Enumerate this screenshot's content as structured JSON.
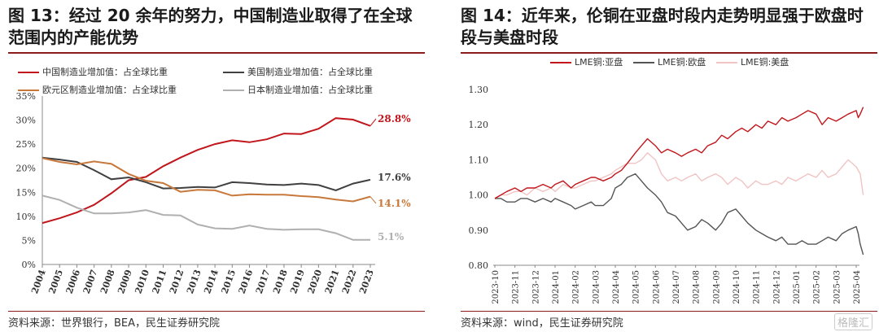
{
  "left": {
    "title": "图 13：经过 20 余年的努力，中国制造业取得了在全球范围内的产能优势",
    "title_line1": "图 13：经过 20 余年的努力，中国制造业取得了在全球",
    "title_line2": "范围内的产能优势",
    "source": "资料来源：世界银行，BEA，民生证券研究院",
    "chart_data": {
      "type": "line",
      "categories": [
        "2004",
        "2005",
        "2006",
        "2007",
        "2008",
        "2009",
        "2010",
        "2011",
        "2012",
        "2013",
        "2014",
        "2015",
        "2016",
        "2017",
        "2018",
        "2019",
        "2020",
        "2021",
        "2022",
        "2023"
      ],
      "ylim": [
        0,
        35
      ],
      "yticks": [
        "0%",
        "5%",
        "10%",
        "15%",
        "20%",
        "25%",
        "30%",
        "35%"
      ],
      "series": [
        {
          "name": "中国制造业增加值：占全球比重",
          "color": "#c0161c",
          "values": [
            8.6,
            9.6,
            10.8,
            12.4,
            14.8,
            17.5,
            18.2,
            20.4,
            22.2,
            23.8,
            25.0,
            25.8,
            25.4,
            26.0,
            27.2,
            27.1,
            28.2,
            30.4,
            30.1,
            28.8
          ],
          "end_label": "28.8%"
        },
        {
          "name": "美国制造业增加值：占全球比重",
          "color": "#404040",
          "values": [
            22.2,
            21.8,
            21.3,
            19.6,
            17.7,
            18.1,
            17.1,
            15.8,
            15.9,
            16.1,
            16.0,
            17.1,
            16.9,
            16.6,
            16.5,
            16.8,
            16.5,
            15.4,
            16.8,
            17.6
          ],
          "end_label": "17.6%"
        },
        {
          "name": "欧元区制造业增加值：占全球比重",
          "color": "#c8783a",
          "values": [
            22.1,
            21.3,
            20.8,
            21.4,
            20.9,
            18.8,
            17.4,
            16.9,
            15.1,
            15.5,
            15.4,
            14.3,
            14.6,
            14.5,
            14.5,
            14.2,
            14.0,
            13.5,
            13.1,
            14.1
          ],
          "end_label": "14.1%"
        },
        {
          "name": "日本制造业增加值：占全球比重",
          "color": "#b0b0b0",
          "values": [
            14.3,
            13.4,
            11.8,
            10.6,
            10.6,
            10.8,
            11.3,
            10.3,
            10.2,
            8.3,
            7.5,
            7.4,
            8.1,
            7.4,
            7.2,
            7.3,
            7.3,
            6.5,
            5.1,
            5.1
          ],
          "end_label": "5.1%"
        }
      ]
    }
  },
  "right": {
    "title": "图 14：近年来，伦铜在亚盘时段内走势明显强于欧盘时段与美盘时段",
    "title_line1": "图 14：近年来，伦铜在亚盘时段内走势明显强于欧盘时",
    "title_line2": "段与美盘时段",
    "source": "资料来源：wind，民生证券研究院",
    "watermark": "格隆汇",
    "chart_data": {
      "type": "line",
      "categories": [
        "2023-10",
        "2023-11",
        "2023-12",
        "2024-01",
        "2024-02",
        "2024-03",
        "2024-04",
        "2024-05",
        "2024-06",
        "2024-07",
        "2024-08",
        "2024-09",
        "2024-10",
        "2024-11",
        "2024-12",
        "2025-01",
        "2025-02",
        "2025-03",
        "2025-04"
      ],
      "ylim": [
        0.8,
        1.3
      ],
      "yticks": [
        "0.80",
        "0.90",
        "1.00",
        "1.10",
        "1.20",
        "1.30"
      ],
      "series": [
        {
          "name": "LME铜:亚盘",
          "color": "#c0161c",
          "x": [
            0,
            0.3,
            0.6,
            1,
            1.3,
            1.6,
            2,
            2.4,
            2.8,
            3,
            3.4,
            3.8,
            4,
            4.4,
            4.8,
            5,
            5.4,
            5.8,
            6,
            6.3,
            6.6,
            7,
            7.3,
            7.6,
            8,
            8.3,
            8.6,
            9,
            9.3,
            9.6,
            10,
            10.3,
            10.6,
            11,
            11.3,
            11.6,
            12,
            12.3,
            12.6,
            13,
            13.3,
            13.6,
            14,
            14.3,
            14.6,
            15,
            15.3,
            15.6,
            16,
            16.3,
            16.6,
            17,
            17.3,
            17.6,
            18,
            18.1,
            18.2,
            18.35
          ],
          "values": [
            0.99,
            1.0,
            1.01,
            1.02,
            1.01,
            1.02,
            1.02,
            1.03,
            1.02,
            1.03,
            1.04,
            1.02,
            1.03,
            1.04,
            1.05,
            1.05,
            1.04,
            1.05,
            1.06,
            1.07,
            1.09,
            1.12,
            1.14,
            1.16,
            1.14,
            1.12,
            1.13,
            1.12,
            1.11,
            1.12,
            1.13,
            1.12,
            1.14,
            1.15,
            1.17,
            1.16,
            1.18,
            1.19,
            1.18,
            1.2,
            1.19,
            1.21,
            1.2,
            1.22,
            1.21,
            1.22,
            1.23,
            1.24,
            1.23,
            1.2,
            1.22,
            1.21,
            1.22,
            1.23,
            1.24,
            1.22,
            1.23,
            1.25
          ]
        },
        {
          "name": "LME铜:欧盘",
          "color": "#555555",
          "x": [
            0,
            0.3,
            0.6,
            1,
            1.3,
            1.6,
            2,
            2.4,
            2.8,
            3,
            3.4,
            3.8,
            4,
            4.4,
            4.8,
            5,
            5.4,
            5.8,
            6,
            6.3,
            6.6,
            7,
            7.3,
            7.6,
            8,
            8.3,
            8.6,
            9,
            9.3,
            9.6,
            10,
            10.3,
            10.6,
            11,
            11.3,
            11.6,
            12,
            12.3,
            12.6,
            13,
            13.3,
            13.6,
            14,
            14.3,
            14.6,
            15,
            15.3,
            15.6,
            16,
            16.3,
            16.6,
            17,
            17.3,
            17.6,
            18,
            18.1,
            18.2,
            18.35
          ],
          "values": [
            0.99,
            0.99,
            0.98,
            0.98,
            0.99,
            0.99,
            0.98,
            0.99,
            0.98,
            0.99,
            0.98,
            0.97,
            0.96,
            0.97,
            0.98,
            0.97,
            0.97,
            0.99,
            1.02,
            1.03,
            1.05,
            1.06,
            1.04,
            1.02,
            1.0,
            0.98,
            0.95,
            0.94,
            0.92,
            0.9,
            0.91,
            0.93,
            0.92,
            0.9,
            0.92,
            0.95,
            0.96,
            0.94,
            0.92,
            0.9,
            0.89,
            0.88,
            0.87,
            0.88,
            0.86,
            0.86,
            0.87,
            0.86,
            0.86,
            0.87,
            0.88,
            0.87,
            0.89,
            0.9,
            0.91,
            0.89,
            0.86,
            0.83
          ]
        },
        {
          "name": "LME铜:美盘",
          "color": "#f0c4c4",
          "x": [
            0,
            0.3,
            0.6,
            1,
            1.3,
            1.6,
            2,
            2.4,
            2.8,
            3,
            3.4,
            3.8,
            4,
            4.4,
            4.8,
            5,
            5.4,
            5.8,
            6,
            6.3,
            6.6,
            7,
            7.3,
            7.6,
            8,
            8.3,
            8.6,
            9,
            9.3,
            9.6,
            10,
            10.3,
            10.6,
            11,
            11.3,
            11.6,
            12,
            12.3,
            12.6,
            13,
            13.3,
            13.6,
            14,
            14.3,
            14.6,
            15,
            15.3,
            15.6,
            16,
            16.3,
            16.6,
            17,
            17.3,
            17.6,
            18,
            18.1,
            18.2,
            18.35
          ],
          "values": [
            0.99,
            1.0,
            1.0,
            1.01,
            1.01,
            1.0,
            1.02,
            1.01,
            1.02,
            1.01,
            1.03,
            1.02,
            1.02,
            1.03,
            1.04,
            1.04,
            1.05,
            1.06,
            1.07,
            1.08,
            1.09,
            1.09,
            1.1,
            1.12,
            1.1,
            1.06,
            1.04,
            1.05,
            1.04,
            1.05,
            1.06,
            1.04,
            1.05,
            1.06,
            1.05,
            1.03,
            1.05,
            1.04,
            1.02,
            1.04,
            1.03,
            1.03,
            1.04,
            1.03,
            1.05,
            1.04,
            1.05,
            1.06,
            1.05,
            1.07,
            1.05,
            1.06,
            1.08,
            1.1,
            1.08,
            1.07,
            1.06,
            1.0
          ]
        }
      ]
    }
  }
}
